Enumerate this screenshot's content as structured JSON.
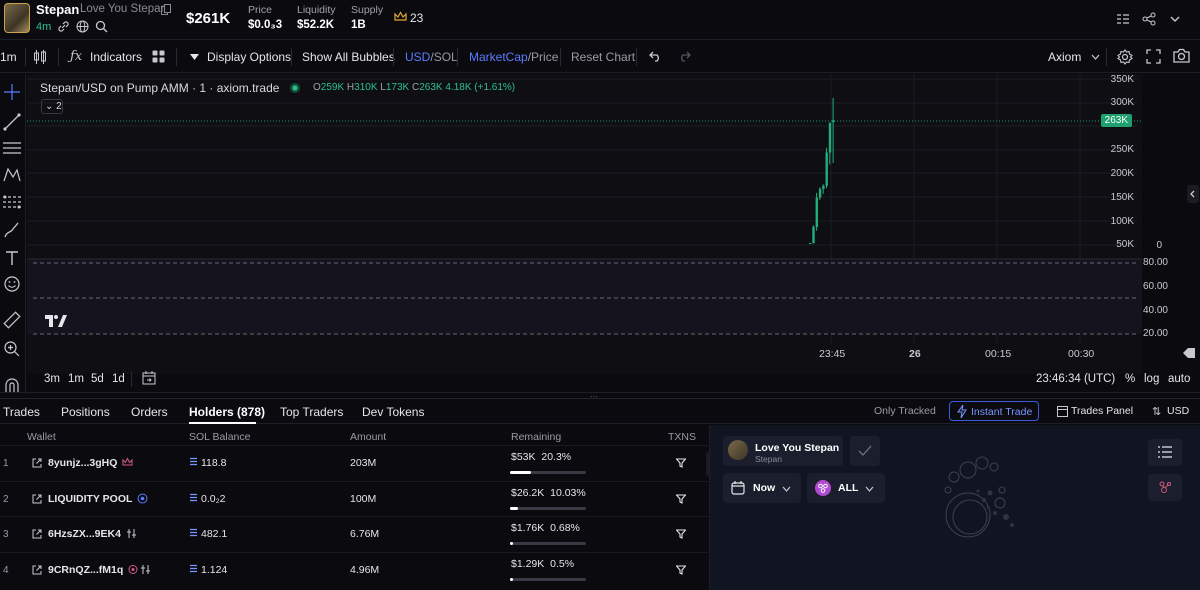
{
  "header": {
    "token_name": "Stepan",
    "token_full_name": "Love You Stepan",
    "age": "4m",
    "market_cap": "$261K",
    "stats": [
      {
        "label": "Price",
        "value": "$0.0₃3"
      },
      {
        "label": "Liquidity",
        "value": "$52.2K"
      },
      {
        "label": "Supply",
        "value": "1B"
      }
    ],
    "crown_count": "23"
  },
  "toolbar": {
    "interval": "1m",
    "indicators": "Indicators",
    "display_options": "Display Options",
    "show_bubbles": "Show All Bubbles",
    "usd": "USD",
    "sol": "SOL",
    "slash": "/",
    "marketcap": "MarketCap",
    "price": "Price",
    "reset": "Reset Chart",
    "axiom": "Axiom"
  },
  "chart": {
    "title": "Stepan/USD on Pump AMM · 1 · axiom.trade",
    "ohlc": {
      "o_label": "O",
      "o": "259K",
      "h_label": "H",
      "h": "310K",
      "l_label": "L",
      "l": "173K",
      "c_label": "C",
      "c": "263K",
      "change": "4.18K (+1.61%)"
    },
    "collapse_count": "2",
    "current_price_tag": "263K",
    "y_ticks": [
      "350K",
      "300K",
      "250K",
      "200K",
      "150K",
      "100K",
      "50K",
      "0"
    ],
    "volume_ticks": [
      "80.00",
      "60.00",
      "40.00",
      "20.00"
    ],
    "x_ticks": [
      "23:45",
      "26",
      "00:15",
      "00:30"
    ],
    "timeframes": [
      "3m",
      "1m",
      "5d",
      "1d"
    ],
    "clock": "23:46:34 (UTC)",
    "pct": "%",
    "log": "log",
    "auto": "auto"
  },
  "tabs": {
    "items": [
      "Trades",
      "Positions",
      "Orders",
      "Holders (878)",
      "Top Traders",
      "Dev Tokens"
    ],
    "only_tracked": "Only Tracked",
    "instant_trade": "Instant Trade",
    "trades_panel": "Trades Panel",
    "currency": "USD"
  },
  "holders": {
    "headers": {
      "wallet": "Wallet",
      "sol_balance": "SOL Balance",
      "amount": "Amount",
      "remaining": "Remaining",
      "txns": "TXNS"
    },
    "rows": [
      {
        "idx": "1",
        "wallet": "8yunjz...3gHQ",
        "sol": "118.8",
        "amount": "203M",
        "remaining": "$53K",
        "pct": "20.3%",
        "fill": 0.27
      },
      {
        "idx": "2",
        "wallet": "LIQUIDITY POOL",
        "sol": "0.0₂2",
        "amount": "100M",
        "remaining": "$26.2K",
        "pct": "10.03%",
        "fill": 0.1
      },
      {
        "idx": "3",
        "wallet": "6HzsZX...9EK4",
        "sol": "482.1",
        "amount": "6.76M",
        "remaining": "$1.76K",
        "pct": "0.68%",
        "fill": 0.04
      },
      {
        "idx": "4",
        "wallet": "9CRnQZ...fM1q",
        "sol": "1.124",
        "amount": "4.96M",
        "remaining": "$1.29K",
        "pct": "0.5%",
        "fill": 0.04
      }
    ]
  },
  "rpanel": {
    "name": "Love You Stepan",
    "sub": "Stepan",
    "now": "Now",
    "all": "ALL"
  }
}
